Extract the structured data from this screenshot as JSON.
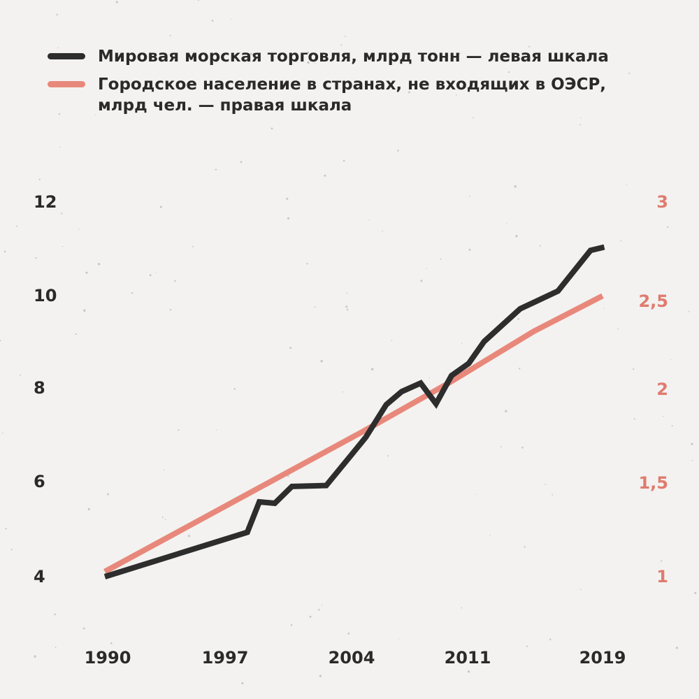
{
  "colors": {
    "trade": "#2d2d2d",
    "urban": "#e8887b",
    "left_axis_text": "#2a2a2a",
    "right_axis_text": "#e07b6f"
  },
  "chart_data": {
    "type": "line",
    "title": "",
    "legend": [
      {
        "name": "Мировая морская торговля, млрд тонн — левая шкала",
        "color": "#2d2d2d"
      },
      {
        "name": "Городское население в странах, не входящих в ОЭСР, млрд чел. — правая шкала",
        "color": "#e8887b"
      }
    ],
    "x_ticks": [
      "1990",
      "1997",
      "2004",
      "2011",
      "2019"
    ],
    "x_range": [
      1990,
      2019
    ],
    "left_axis": {
      "ticks": [
        "12",
        "10",
        "8",
        "6",
        "4"
      ],
      "tick_values": [
        12,
        10,
        8,
        6,
        4
      ],
      "range": [
        4,
        12
      ]
    },
    "right_axis": {
      "ticks": [
        "3",
        "2,5",
        "2",
        "1,5",
        "1"
      ],
      "tick_values": [
        3,
        2.5,
        2,
        1.5,
        1
      ],
      "range": [
        1,
        3
      ]
    },
    "series": [
      {
        "name": "Мировая морская торговля, млрд тонн — левая шкала",
        "axis": "left",
        "x": [
          1990,
          1998.3,
          1999,
          1999.9,
          2000.9,
          2002.9,
          2005.2,
          2006.4,
          2007.3,
          2008.4,
          2009.3,
          2010.2,
          2011.2,
          2012.1,
          2014.2,
          2016.4,
          2018.3,
          2019.1
        ],
        "values": [
          4.0,
          4.95,
          5.6,
          5.57,
          5.93,
          5.95,
          6.98,
          7.68,
          7.96,
          8.14,
          7.7,
          8.3,
          8.56,
          9.03,
          9.73,
          10.11,
          10.98,
          11.05
        ]
      },
      {
        "name": "Городское население в странах, не входящих в ОЭСР, млрд чел. — правая шкала",
        "axis": "right",
        "x": [
          1990,
          1995,
          2000,
          2005,
          2010,
          2015,
          2019
        ],
        "values": [
          1.02,
          1.27,
          1.52,
          1.77,
          2.03,
          2.31,
          2.5
        ]
      }
    ]
  }
}
